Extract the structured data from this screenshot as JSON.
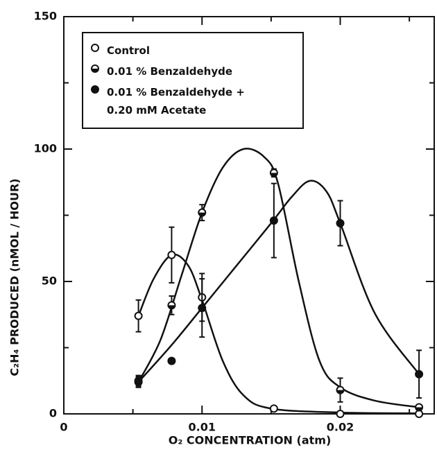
{
  "chart_data": {
    "type": "scatter",
    "x_label": "O₂  CONCENTRATION  (atm)",
    "y_label": "C₂H₄  PRODUCED  (nMOL / HOUR)",
    "xlim": [
      0,
      0.0268
    ],
    "ylim": [
      0,
      150
    ],
    "xticks": [
      0,
      0.01,
      0.02
    ],
    "yticks": [
      0,
      50,
      100,
      150
    ],
    "x_minor_ticks": [
      0.005,
      0.015,
      0.025
    ],
    "y_minor_ticks": [
      25,
      75,
      125
    ],
    "legend": "upper left",
    "series": [
      {
        "name": "Control",
        "marker": "open",
        "color": "#111111",
        "x": [
          0.0054,
          0.0078,
          0.01,
          0.0152,
          0.02,
          0.0257
        ],
        "values": [
          37,
          60,
          44,
          2,
          0,
          0
        ],
        "errors": [
          6,
          10.5,
          9,
          null,
          null,
          null
        ],
        "fit_x": [
          0.0054,
          0.0065,
          0.0078,
          0.009,
          0.01,
          0.0115,
          0.013,
          0.015,
          0.02,
          0.0257
        ],
        "fit_y": [
          37,
          51,
          60,
          56,
          43,
          20,
          7,
          2,
          0.5,
          0.2
        ]
      },
      {
        "name": "0.01 % Benzaldehyde",
        "marker": "half",
        "color": "#111111",
        "x": [
          0.0054,
          0.0078,
          0.01,
          0.0152,
          0.02,
          0.0257
        ],
        "values": [
          12,
          41,
          76,
          91,
          9,
          2.5
        ],
        "errors": [
          2,
          3.5,
          3,
          1.5,
          4.5,
          null
        ],
        "fit_x": [
          0.0054,
          0.007,
          0.0085,
          0.01,
          0.0115,
          0.013,
          0.0145,
          0.0155,
          0.017,
          0.0185,
          0.02,
          0.0225,
          0.0257
        ],
        "fit_y": [
          12,
          28,
          52,
          76,
          93,
          100,
          97,
          87,
          50,
          20,
          10,
          5,
          2.5
        ]
      },
      {
        "name": "0.01 % Benzaldehyde +\n0.20 mM   Acetate",
        "marker": "filled",
        "color": "#111111",
        "x": [
          0.0054,
          0.0078,
          0.01,
          0.0152,
          0.02,
          0.0257
        ],
        "values": [
          12.5,
          20,
          40,
          73,
          72,
          15
        ],
        "errors": [
          2,
          1,
          11,
          14,
          8.5,
          9
        ],
        "fit_x": [
          0.0054,
          0.0078,
          0.01,
          0.0125,
          0.015,
          0.0165,
          0.0178,
          0.019,
          0.02,
          0.0225,
          0.0257
        ],
        "fit_y": [
          12,
          26,
          40,
          56,
          72,
          82,
          88,
          84,
          72,
          38,
          15
        ]
      }
    ]
  }
}
